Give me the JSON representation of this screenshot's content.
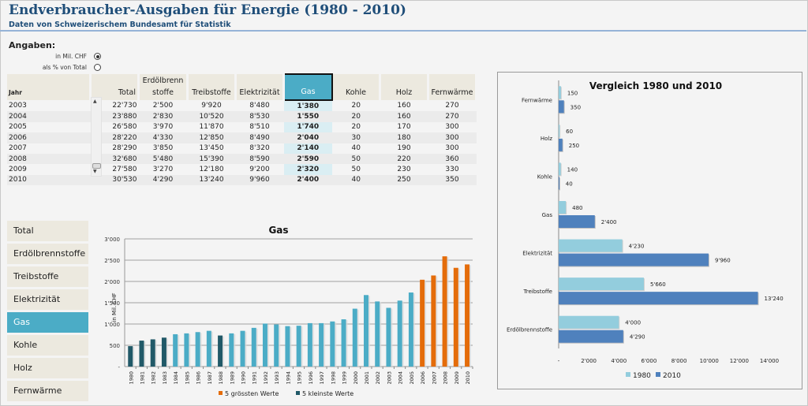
{
  "header": {
    "title": "Endverbraucher-Ausgaben für Energie (1980 - 2010)",
    "subtitle": "Daten von Schweizerischem Bundesamt für Statistik"
  },
  "options": {
    "label": "Angaben:",
    "items": [
      {
        "label": "in Mil. CHF",
        "selected": true
      },
      {
        "label": "als % von Total",
        "selected": false
      }
    ]
  },
  "table": {
    "columns": [
      "Jahr",
      "Total",
      "Erdölbrenn stoffe",
      "Treibstoffe",
      "Elektrizität",
      "Gas",
      "Kohle",
      "Holz",
      "Fernwärme"
    ],
    "selected_column": "Gas",
    "rows": [
      [
        "2003",
        "22'730",
        "2'500",
        "9'920",
        "8'480",
        "1'380",
        "20",
        "160",
        "270"
      ],
      [
        "2004",
        "23'880",
        "2'830",
        "10'520",
        "8'530",
        "1'550",
        "20",
        "160",
        "270"
      ],
      [
        "2005",
        "26'580",
        "3'970",
        "11'870",
        "8'510",
        "1'740",
        "20",
        "170",
        "300"
      ],
      [
        "2006",
        "28'220",
        "4'330",
        "12'850",
        "8'490",
        "2'040",
        "30",
        "180",
        "300"
      ],
      [
        "2007",
        "28'290",
        "3'850",
        "13'450",
        "8'320",
        "2'140",
        "40",
        "190",
        "300"
      ],
      [
        "2008",
        "32'680",
        "5'480",
        "15'390",
        "8'590",
        "2'590",
        "50",
        "220",
        "360"
      ],
      [
        "2009",
        "27'580",
        "3'270",
        "12'180",
        "9'200",
        "2'320",
        "50",
        "230",
        "330"
      ],
      [
        "2010",
        "30'530",
        "4'290",
        "13'240",
        "9'960",
        "2'400",
        "40",
        "250",
        "350"
      ]
    ]
  },
  "menu": {
    "items": [
      "Total",
      "Erdölbrennstoffe",
      "Treibstoffe",
      "Elektrizität",
      "Gas",
      "Kohle",
      "Holz",
      "Fernwärme"
    ],
    "active": "Gas"
  },
  "colors": {
    "accent": "#4bacc6",
    "largest": "#e46c0a",
    "smallest": "#215968",
    "normal": "#4bacc6",
    "y1980": "#93cddd",
    "y2010": "#4f81bd",
    "title": "#1f4e79"
  },
  "chart_data": [
    {
      "type": "bar",
      "title": "Gas",
      "xlabel": "",
      "ylabel": "in Mil. CHF",
      "ylim": [
        0,
        3000
      ],
      "yticks": [
        "-",
        "500",
        "1'000",
        "1'500",
        "2'000",
        "2'500",
        "3'000"
      ],
      "grid": true,
      "categories": [
        "1980",
        "1981",
        "1982",
        "1983",
        "1984",
        "1985",
        "1986",
        "1987",
        "1988",
        "1989",
        "1990",
        "1991",
        "1992",
        "1993",
        "1994",
        "1995",
        "1996",
        "1997",
        "1998",
        "1999",
        "2000",
        "2001",
        "2002",
        "2003",
        "2004",
        "2005",
        "2006",
        "2007",
        "2008",
        "2009",
        "2010"
      ],
      "values": [
        480,
        610,
        640,
        680,
        760,
        780,
        810,
        840,
        730,
        780,
        840,
        910,
        1010,
        990,
        950,
        960,
        1020,
        1020,
        1060,
        1110,
        1360,
        1680,
        1530,
        1380,
        1550,
        1740,
        2040,
        2140,
        2590,
        2320,
        2400
      ],
      "highlight": [
        "smallest",
        "smallest",
        "smallest",
        "smallest",
        "normal",
        "normal",
        "normal",
        "normal",
        "smallest",
        "normal",
        "normal",
        "normal",
        "normal",
        "normal",
        "normal",
        "normal",
        "normal",
        "normal",
        "normal",
        "normal",
        "normal",
        "normal",
        "normal",
        "normal",
        "normal",
        "normal",
        "largest",
        "largest",
        "largest",
        "largest",
        "largest"
      ],
      "legend": [
        {
          "label": "5 grössten Werte",
          "key": "largest"
        },
        {
          "label": "5 kleinste Werte",
          "key": "smallest"
        }
      ],
      "legend_position": "bottom"
    },
    {
      "type": "bar",
      "orientation": "horizontal",
      "title": "Vergleich 1980 und 2010",
      "categories": [
        "Fernwärme",
        "Holz",
        "Kohle",
        "Gas",
        "Elektrizität",
        "Treibstoffe",
        "Erdölbrennstoffe"
      ],
      "series": [
        {
          "name": "1980",
          "values": [
            150,
            60,
            140,
            480,
            4230,
            5660,
            4000
          ],
          "labels": [
            "150",
            "60",
            "140",
            "480",
            "4'230",
            "5'660",
            "4'000"
          ]
        },
        {
          "name": "2010",
          "values": [
            350,
            250,
            40,
            2400,
            9960,
            13240,
            4290
          ],
          "labels": [
            "350",
            "250",
            "40",
            "2'400",
            "9'960",
            "13'240",
            "4'290"
          ]
        }
      ],
      "xlim": [
        0,
        14000
      ],
      "xticks": [
        "-",
        "2'000",
        "4'000",
        "6'000",
        "8'000",
        "10'000",
        "12'000",
        "14'000"
      ],
      "legend_position": "bottom"
    }
  ]
}
